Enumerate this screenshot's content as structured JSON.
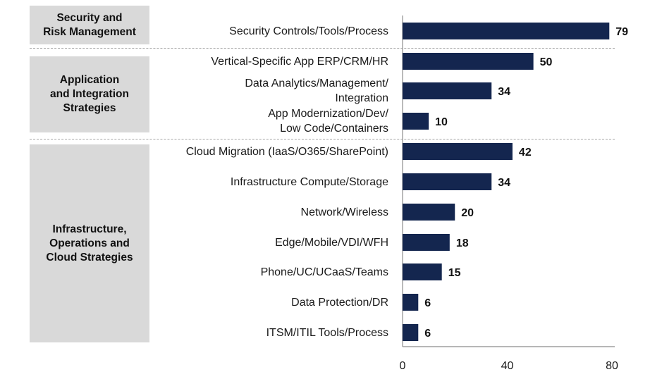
{
  "chart_data": {
    "type": "bar",
    "orientation": "horizontal",
    "groups": [
      {
        "label": "Security and\nRisk Management",
        "categories": [
          0
        ]
      },
      {
        "label": "Application\nand Integration\nStrategies",
        "categories": [
          1,
          2,
          3
        ]
      },
      {
        "label": "Infrastructure,\nOperations and\nCloud Strategies",
        "categories": [
          4,
          5,
          6,
          7,
          8,
          9,
          10
        ]
      }
    ],
    "categories": [
      "Security Controls/Tools/Process",
      "Vertical-Specific App ERP/CRM/HR",
      "Data Analytics/Management/\nIntegration",
      "App Modernization/Dev/\nLow Code/Containers",
      "Cloud Migration (IaaS/O365/SharePoint)",
      "Infrastructure Compute/Storage",
      "Network/Wireless",
      "Edge/Mobile/VDI/WFH",
      "Phone/UC/UCaaS/Teams",
      "Data Protection/DR",
      "ITSM/ITIL Tools/Process"
    ],
    "values": [
      79,
      50,
      34,
      10,
      42,
      34,
      20,
      18,
      15,
      6,
      6
    ],
    "data_labels": [
      "79",
      "50",
      "34",
      "10",
      "42",
      "34",
      "20",
      "18",
      "15",
      "6",
      "6"
    ],
    "xlim": [
      0,
      80
    ],
    "xticks": [
      "0",
      "40",
      "80"
    ],
    "bar_color": "#14264f",
    "group_box_color": "#d9d9d9",
    "title": "",
    "xlabel": "",
    "ylabel": "",
    "grid": false,
    "legend": "none"
  }
}
